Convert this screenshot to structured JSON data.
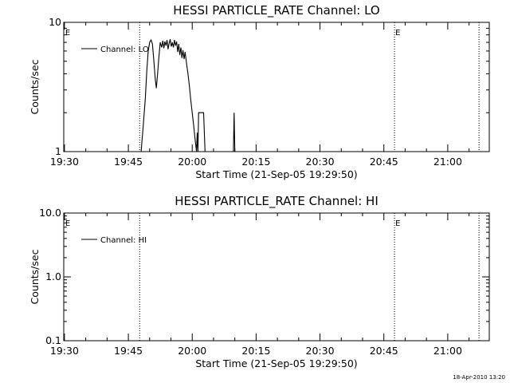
{
  "chart_data": [
    {
      "type": "line",
      "title": "HESSI PARTICLE_RATE Channel: LO",
      "xlabel": "Start Time (21-Sep-05 19:29:50)",
      "ylabel": "Counts/sec",
      "yscale": "log",
      "ylim": [
        1,
        10
      ],
      "yticks": [
        1,
        10
      ],
      "ytick_labels": [
        "1",
        "10"
      ],
      "xlim": [
        "19:29:50",
        "21:09:45"
      ],
      "xticks": [
        "19:30",
        "19:45",
        "20:00",
        "20:15",
        "20:30",
        "20:45",
        "21:00"
      ],
      "grid": false,
      "legend_position": "top-left",
      "series": [
        {
          "name": "Channel: LO",
          "color": "#000000",
          "points": [
            [
              "19:48:00",
              1.0
            ],
            [
              "19:48:30",
              1.6
            ],
            [
              "19:49:00",
              2.6
            ],
            [
              "19:49:20",
              4.2
            ],
            [
              "19:49:40",
              6.0
            ],
            [
              "19:50:00",
              7.0
            ],
            [
              "19:50:20",
              7.3
            ],
            [
              "19:50:40",
              6.8
            ],
            [
              "19:51:00",
              5.0
            ],
            [
              "19:51:20",
              3.6
            ],
            [
              "19:51:35",
              3.1
            ],
            [
              "19:51:50",
              3.9
            ],
            [
              "19:52:10",
              5.4
            ],
            [
              "19:52:30",
              7.0
            ],
            [
              "19:52:50",
              6.4
            ],
            [
              "19:53:05",
              7.2
            ],
            [
              "19:53:20",
              6.3
            ],
            [
              "19:53:35",
              7.1
            ],
            [
              "19:53:50",
              6.6
            ],
            [
              "19:54:05",
              7.3
            ],
            [
              "19:54:20",
              6.2
            ],
            [
              "19:54:35",
              6.9
            ],
            [
              "19:54:50",
              7.4
            ],
            [
              "19:55:05",
              6.5
            ],
            [
              "19:55:20",
              7.0
            ],
            [
              "19:55:35",
              6.4
            ],
            [
              "19:55:50",
              7.3
            ],
            [
              "19:56:05",
              6.6
            ],
            [
              "19:56:20",
              7.1
            ],
            [
              "19:56:35",
              5.9
            ],
            [
              "19:56:50",
              6.8
            ],
            [
              "19:57:05",
              5.6
            ],
            [
              "19:57:20",
              6.4
            ],
            [
              "19:57:35",
              5.3
            ],
            [
              "19:57:50",
              6.1
            ],
            [
              "19:58:05",
              5.2
            ],
            [
              "19:58:20",
              5.9
            ],
            [
              "19:58:40",
              4.8
            ],
            [
              "19:59:00",
              4.0
            ],
            [
              "19:59:20",
              3.2
            ],
            [
              "19:59:40",
              2.5
            ],
            [
              "20:00:00",
              2.0
            ],
            [
              "20:00:20",
              1.6
            ],
            [
              "20:00:40",
              1.25
            ],
            [
              "20:01:00",
              1.0
            ],
            [
              "20:01:10",
              1.4
            ],
            [
              "20:01:20",
              1.0
            ],
            [
              "20:01:30",
              2.0
            ],
            [
              "20:02:40",
              2.0
            ],
            [
              "20:03:00",
              1.0
            ],
            [
              "20:09:40",
              1.0
            ],
            [
              "20:09:50",
              2.0
            ],
            [
              "20:10:00",
              1.0
            ]
          ]
        }
      ],
      "markers": [
        {
          "time": "19:30:00",
          "label": "E"
        },
        {
          "time": "19:47:40",
          "label": ""
        },
        {
          "time": "20:47:30",
          "label": "E"
        },
        {
          "time": "21:07:20",
          "label": ""
        }
      ]
    },
    {
      "type": "line",
      "title": "HESSI PARTICLE_RATE Channel: HI",
      "xlabel": "Start Time (21-Sep-05 19:29:50)",
      "ylabel": "Counts/sec",
      "yscale": "log",
      "ylim": [
        0.1,
        10.0
      ],
      "yticks": [
        0.1,
        1.0,
        10.0
      ],
      "ytick_labels": [
        "0.1",
        "1.0",
        "10.0"
      ],
      "xlim": [
        "19:29:50",
        "21:09:45"
      ],
      "xticks": [
        "19:30",
        "19:45",
        "20:00",
        "20:15",
        "20:30",
        "20:45",
        "21:00"
      ],
      "grid": false,
      "legend_position": "top-left",
      "series": [
        {
          "name": "Channel: HI",
          "color": "#000000",
          "points": []
        }
      ],
      "markers": [
        {
          "time": "19:30:00",
          "label": "E"
        },
        {
          "time": "19:47:40",
          "label": ""
        },
        {
          "time": "20:47:30",
          "label": "E"
        },
        {
          "time": "21:07:20",
          "label": ""
        }
      ]
    }
  ],
  "footer_stamp": "18-Apr-2010 13:20"
}
